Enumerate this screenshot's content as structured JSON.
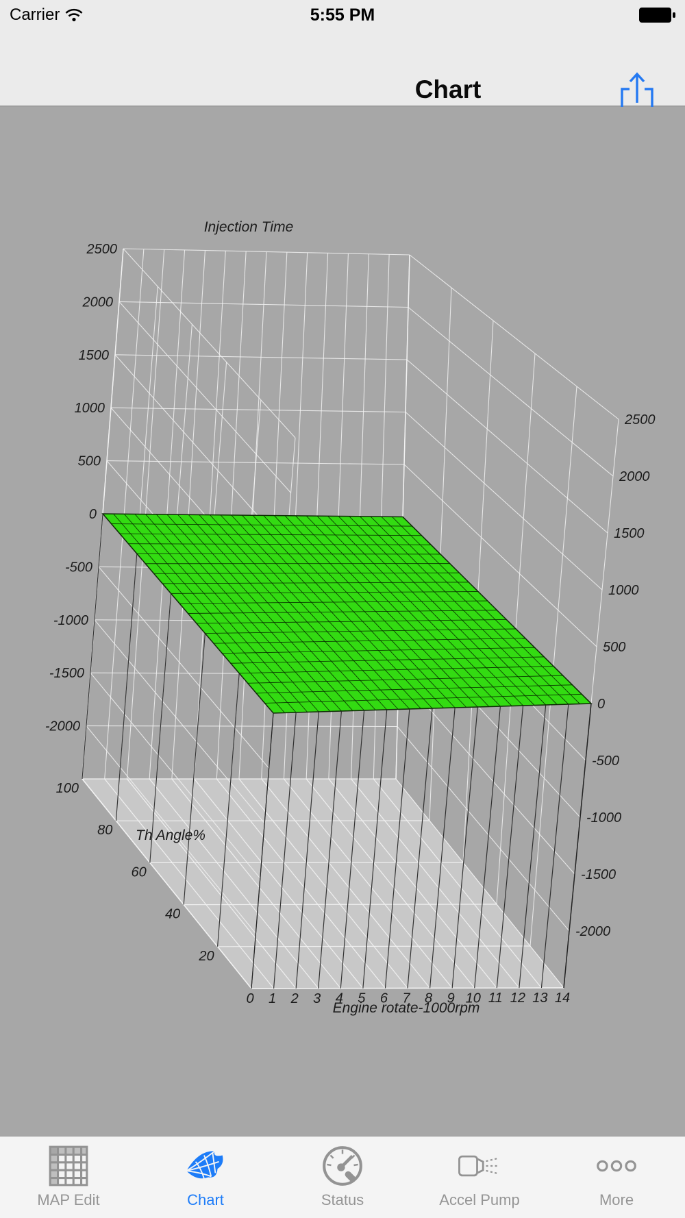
{
  "status_bar": {
    "carrier": "Carrier",
    "time": "5:55 PM"
  },
  "nav_bar": {
    "title": "Chart",
    "share_icon": "share-export-icon"
  },
  "tab_bar": {
    "items": [
      {
        "id": "map-edit",
        "label": "MAP Edit",
        "icon": "grid-table-icon",
        "active": false
      },
      {
        "id": "chart",
        "label": "Chart",
        "icon": "surface-mesh-icon",
        "active": true
      },
      {
        "id": "status",
        "label": "Status",
        "icon": "gauge-icon",
        "active": false
      },
      {
        "id": "accel-pump",
        "label": "Accel Pump",
        "icon": "injector-spray-icon",
        "active": false
      },
      {
        "id": "more",
        "label": "More",
        "icon": "ellipsis-icon",
        "active": false
      }
    ]
  },
  "chart_data": {
    "type": "surface3d",
    "title": "Injection Time",
    "x_axis": {
      "label": "Engine rotate-1000rpm",
      "min": 0,
      "max": 14,
      "ticks": [
        0,
        1,
        2,
        3,
        4,
        5,
        6,
        7,
        8,
        9,
        10,
        11,
        12,
        13,
        14
      ]
    },
    "y_axis": {
      "label": "Th Angle%",
      "min": 0,
      "max": 100,
      "ticks": [
        20,
        40,
        60,
        80,
        100
      ]
    },
    "z_axis": {
      "min": -2500,
      "max": 2500,
      "ticks": [
        -2000,
        -1500,
        -1000,
        -500,
        0,
        500,
        1000,
        1500,
        2000,
        2500
      ],
      "shown_on": [
        "left",
        "right"
      ]
    },
    "surface": {
      "shape": "flat-plane",
      "z_value": 0,
      "x_step": 0.5,
      "y_step": 5
    },
    "wall_y_lines": [
      0,
      20,
      40,
      60,
      80,
      100
    ],
    "drop_line_x": [
      0,
      1,
      2,
      3,
      4,
      5,
      6,
      7,
      8,
      9,
      10,
      11,
      12,
      13,
      14
    ],
    "drop_line_y": [
      0,
      20,
      40,
      60,
      80,
      100
    ],
    "legend": null,
    "grid": true,
    "colors": {
      "background": "#a7a7a7",
      "floor": "#c8c8c8",
      "grid_line": "#f2f2f2",
      "surface_fill": "#33db12",
      "surface_mesh": "rgba(8,45,0,0.9)",
      "surface_edge": "rgba(30,45,20,0.95)",
      "drop_line": "#232323",
      "label": "#1b1b1b"
    }
  }
}
